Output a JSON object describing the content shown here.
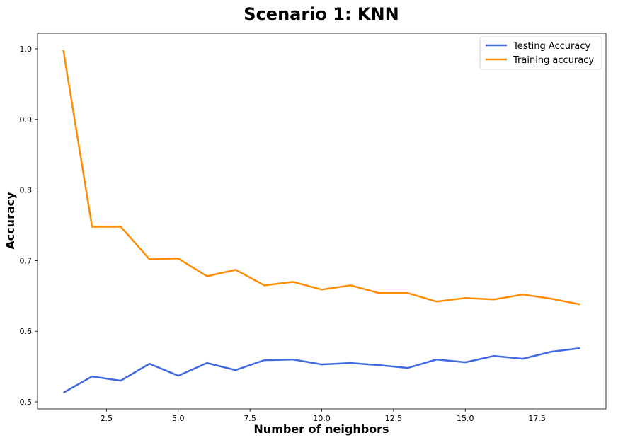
{
  "chart_data": {
    "type": "line",
    "title": "Scenario 1: KNN",
    "xlabel": "Number of neighbors",
    "ylabel": "Accuracy",
    "x": [
      1,
      2,
      3,
      4,
      5,
      6,
      7,
      8,
      9,
      10,
      11,
      12,
      13,
      14,
      15,
      16,
      17,
      18,
      19
    ],
    "xlim": [
      0.1,
      19.9
    ],
    "ylim": [
      0.49,
      1.022
    ],
    "xticks": [
      2.5,
      5.0,
      7.5,
      10.0,
      12.5,
      15.0,
      17.5
    ],
    "xtick_labels": [
      "2.5",
      "5.0",
      "7.5",
      "10.0",
      "12.5",
      "15.0",
      "17.5"
    ],
    "yticks": [
      0.5,
      0.6,
      0.7,
      0.8,
      0.9,
      1.0
    ],
    "ytick_labels": [
      "0.5",
      "0.6",
      "0.7",
      "0.8",
      "0.9",
      "1.0"
    ],
    "grid": false,
    "legend_position": "top-right",
    "series": [
      {
        "name": "Testing Accuracy",
        "color": "#4169e1",
        "values": [
          0.513,
          0.536,
          0.53,
          0.554,
          0.537,
          0.555,
          0.545,
          0.559,
          0.56,
          0.553,
          0.555,
          0.552,
          0.548,
          0.56,
          0.556,
          0.565,
          0.561,
          0.571,
          0.576
        ]
      },
      {
        "name": "Training accuracy",
        "color": "#ff8c00",
        "values": [
          0.998,
          0.748,
          0.748,
          0.702,
          0.703,
          0.678,
          0.687,
          0.665,
          0.67,
          0.659,
          0.665,
          0.654,
          0.654,
          0.642,
          0.647,
          0.645,
          0.652,
          0.646,
          0.638
        ]
      }
    ]
  }
}
